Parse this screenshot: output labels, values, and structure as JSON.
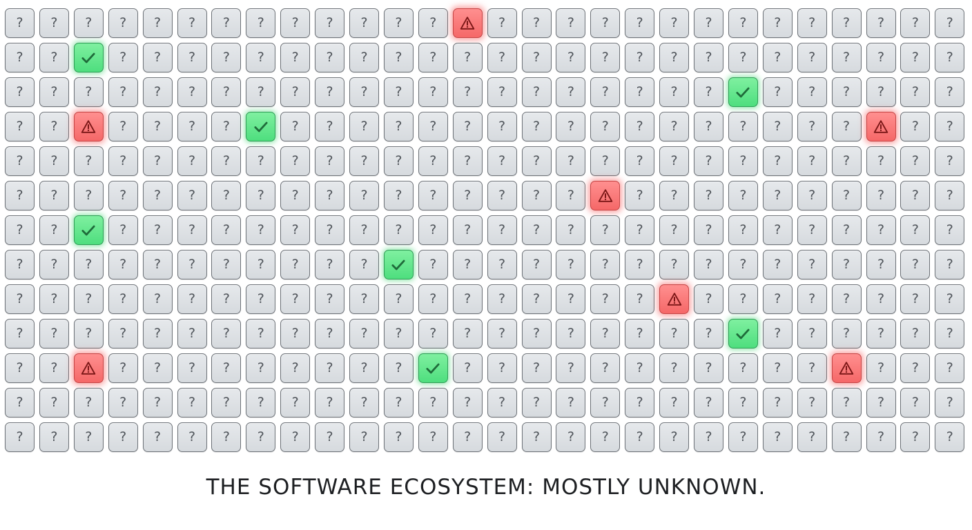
{
  "grid": {
    "rows": 13,
    "cols": 28,
    "unknown_symbol": "?",
    "unknown_icon": "question-mark-icon",
    "known_good_icon": "checkmark-icon",
    "known_bad_icon": "warning-triangle-icon",
    "colors": {
      "unknown_fill": "#dcdfe3",
      "known_good_fill": "#5ee88c",
      "known_bad_fill": "#f97474",
      "border": "#6b7076"
    },
    "known_good": [
      [
        1,
        2
      ],
      [
        2,
        21
      ],
      [
        3,
        7
      ],
      [
        6,
        2
      ],
      [
        7,
        11
      ],
      [
        9,
        21
      ],
      [
        10,
        12
      ]
    ],
    "known_bad": [
      [
        0,
        13
      ],
      [
        3,
        2
      ],
      [
        3,
        25
      ],
      [
        5,
        17
      ],
      [
        8,
        19
      ],
      [
        10,
        2
      ],
      [
        10,
        24
      ]
    ]
  },
  "caption": {
    "text": "THE SOFTWARE ECOSYSTEM: MOSTLY UNKNOWN."
  }
}
